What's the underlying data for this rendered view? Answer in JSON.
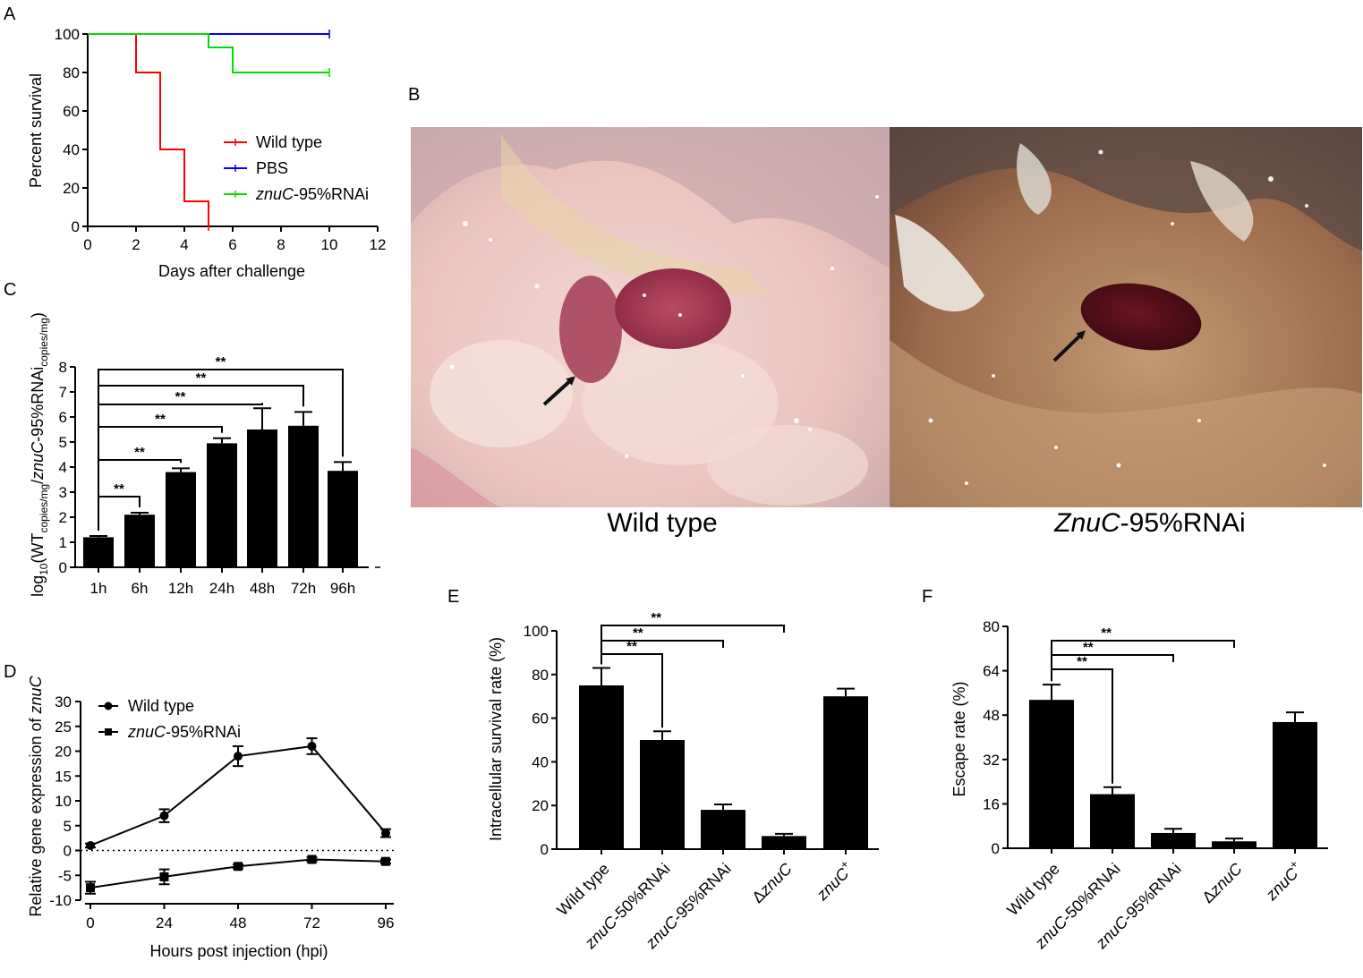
{
  "panels": {
    "A": {
      "letter": "A"
    },
    "B": {
      "letter": "B"
    },
    "C": {
      "letter": "C"
    },
    "D": {
      "letter": "D"
    },
    "E": {
      "letter": "E"
    },
    "F": {
      "letter": "F"
    }
  },
  "photos": {
    "left_caption": "Wild type",
    "right_caption_italic": "ZnuC",
    "right_caption_rest": "-95%RNAi"
  },
  "colors": {
    "wild_type": "#ff0000",
    "pbs": "#0000ff",
    "rnai": "#00dd00",
    "bars": "#000000"
  },
  "chart_data": [
    {
      "panel": "A",
      "type": "line",
      "step": true,
      "xlabel": "Days after challenge",
      "ylabel": "Percent survival",
      "xlim": [
        0,
        12
      ],
      "ylim": [
        0,
        100
      ],
      "xticks": [
        "0",
        "2",
        "4",
        "6",
        "8",
        "10",
        "12"
      ],
      "yticks": [
        "0",
        "20",
        "40",
        "60",
        "80",
        "100"
      ],
      "legend_position": "right",
      "series": [
        {
          "name": "Wild type",
          "color": "#ff0000",
          "x": [
            0,
            2,
            2,
            3,
            3,
            4,
            4,
            5,
            5
          ],
          "y": [
            100,
            100,
            80,
            80,
            40,
            40,
            13,
            13,
            0
          ]
        },
        {
          "name": "PBS",
          "color": "#0000ff",
          "x": [
            0,
            10
          ],
          "y": [
            100,
            100
          ]
        },
        {
          "name_italic": "znuC",
          "name_rest": "-95%RNAi",
          "color": "#00dd00",
          "x": [
            0,
            5,
            5,
            6,
            6,
            10
          ],
          "y": [
            100,
            100,
            93,
            93,
            80,
            80
          ]
        }
      ]
    },
    {
      "panel": "C",
      "type": "bar",
      "ylabel_parts": [
        "log",
        "10",
        "(WT",
        "copies/mg",
        "/",
        "znuC",
        "-95%RNAi",
        "copies/mg",
        ")"
      ],
      "ylim": [
        0,
        8
      ],
      "yticks": [
        "0",
        "1",
        "2",
        "3",
        "4",
        "5",
        "6",
        "7",
        "8"
      ],
      "categories": [
        "1h",
        "6h",
        "12h",
        "24h",
        "48h",
        "72h",
        "96h"
      ],
      "values": [
        1.2,
        2.1,
        3.8,
        4.95,
        5.5,
        5.65,
        3.85
      ],
      "errors": [
        0.05,
        0.08,
        0.15,
        0.2,
        0.85,
        0.55,
        0.35
      ],
      "significance": [
        {
          "from": 0,
          "to": 1,
          "label": "**"
        },
        {
          "from": 0,
          "to": 2,
          "label": "**"
        },
        {
          "from": 0,
          "to": 3,
          "label": "**"
        },
        {
          "from": 0,
          "to": 4,
          "label": "**"
        },
        {
          "from": 0,
          "to": 5,
          "label": "**"
        },
        {
          "from": 0,
          "to": 6,
          "label": "**"
        }
      ]
    },
    {
      "panel": "D",
      "type": "line",
      "xlabel": "Hours post injection (hpi)",
      "ylabel": "Relative gene expression of ",
      "ylabel_italic": "znuC",
      "xlim": [
        0,
        96
      ],
      "ylim": [
        -10,
        30
      ],
      "xticks": [
        "0",
        "24",
        "48",
        "72",
        "96"
      ],
      "yticks": [
        "-10",
        "-5",
        "0",
        "5",
        "10",
        "15",
        "20",
        "25",
        "30"
      ],
      "reference_line": 0,
      "legend_position": "top-left",
      "series": [
        {
          "name": "Wild type",
          "marker": "circle",
          "x": [
            0,
            24,
            48,
            72,
            96
          ],
          "y": [
            1,
            7,
            19,
            21,
            3.5
          ],
          "err": [
            0.4,
            1.3,
            2.0,
            1.6,
            0.8
          ]
        },
        {
          "name_italic": "znuC",
          "name_rest": "-95%RNAi",
          "marker": "square",
          "x": [
            0,
            24,
            48,
            72,
            96
          ],
          "y": [
            -7.5,
            -5.3,
            -3.2,
            -1.8,
            -2.2
          ],
          "err": [
            1.2,
            1.5,
            0.4,
            0.4,
            0.4
          ]
        }
      ]
    },
    {
      "panel": "E",
      "type": "bar",
      "ylabel": "Intracellular survival rate (%)",
      "ylim": [
        0,
        100
      ],
      "yticks": [
        "0",
        "20",
        "40",
        "60",
        "80",
        "100"
      ],
      "categories": [
        {
          "text": "Wild type"
        },
        {
          "italic": "znuC",
          "rest": "-50%RNAi"
        },
        {
          "italic": "znuC",
          "rest": "-95%RNAi"
        },
        {
          "prefix": "Δ",
          "italic": "znuC"
        },
        {
          "italic": "znuC",
          "sup": "+"
        }
      ],
      "values": [
        75,
        50,
        18,
        6,
        70
      ],
      "errors": [
        8,
        4,
        2.5,
        1,
        3.5
      ],
      "significance": [
        {
          "from": 0,
          "to": 1,
          "label": "**"
        },
        {
          "from": 0,
          "to": 2,
          "label": "**"
        },
        {
          "from": 0,
          "to": 3,
          "label": "**"
        }
      ]
    },
    {
      "panel": "F",
      "type": "bar",
      "ylabel": "Escape rate (%)",
      "ylim": [
        0,
        80
      ],
      "yticks": [
        "0",
        "16",
        "32",
        "48",
        "64",
        "80"
      ],
      "categories": [
        {
          "text": "Wild type"
        },
        {
          "italic": "znuC",
          "rest": "-50%RNAi"
        },
        {
          "italic": "znuC",
          "rest": "-95%RNAi"
        },
        {
          "prefix": "Δ",
          "italic": "znuC"
        },
        {
          "italic": "znuC",
          "sup": "+"
        }
      ],
      "values": [
        53.5,
        19.5,
        5.5,
        2.5,
        45.5
      ],
      "errors": [
        5.5,
        2.5,
        1.5,
        1,
        3.5
      ],
      "significance": [
        {
          "from": 0,
          "to": 1,
          "label": "**"
        },
        {
          "from": 0,
          "to": 2,
          "label": "**"
        },
        {
          "from": 0,
          "to": 3,
          "label": "**"
        }
      ]
    }
  ]
}
